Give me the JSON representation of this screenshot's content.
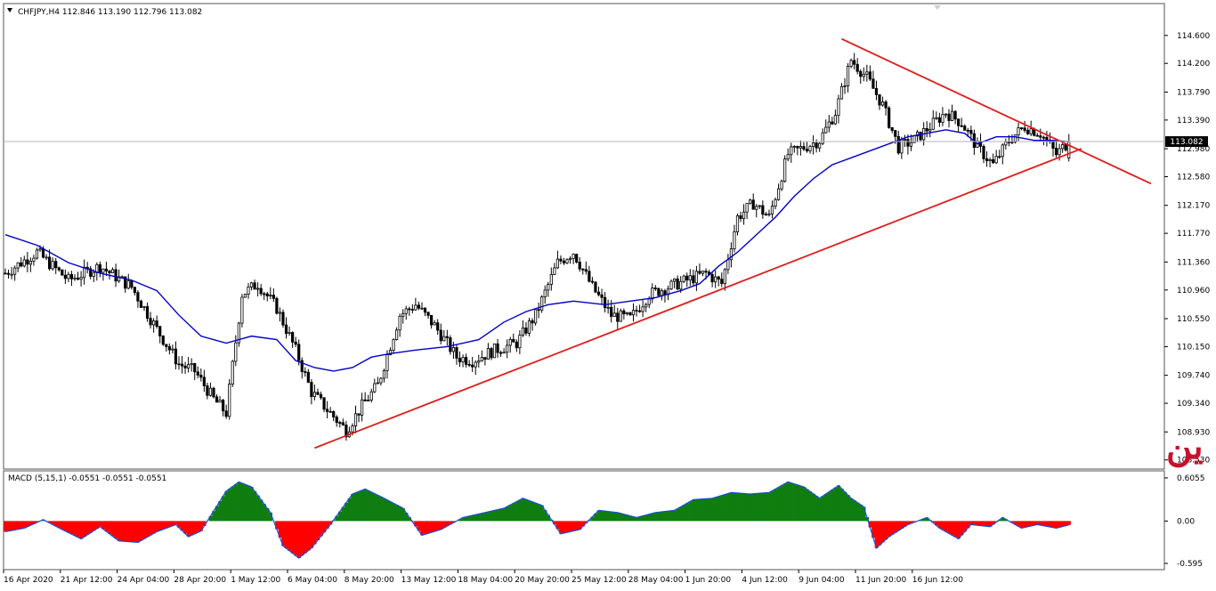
{
  "chart_window": {
    "header": "CHFJPY,H4  112.846 113.190 112.796 113.082",
    "overlay_text": "الفرنك ين",
    "current_price_label": "113.082",
    "colors": {
      "background": "#ffffff",
      "candle": "#000000",
      "moving_average": "#0000cc",
      "trendlines": "#e11b1b",
      "histogram_positive": "#0f7d0f",
      "histogram_negative": "#ff0000",
      "macd_line": "#1a4fd6",
      "overlay_text": "#c8102e"
    }
  },
  "chart_data": [
    {
      "type": "candlestick",
      "title": "CHFJPY,H4",
      "ohlc_header": {
        "open": 112.846,
        "high": 113.19,
        "low": 112.796,
        "close": 113.082
      },
      "ylim": [
        108.45,
        114.75
      ],
      "y_ticks": [
        "114.600",
        "114.200",
        "113.790",
        "113.390",
        "112.980",
        "112.580",
        "112.170",
        "111.770",
        "111.360",
        "110.960",
        "110.550",
        "110.150",
        "109.740",
        "109.340",
        "108.930",
        "108.530"
      ],
      "x_ticks": [
        "16 Apr 2020",
        "21 Apr 12:00",
        "24 Apr 04:00",
        "28 Apr 20:00",
        "1 May 12:00",
        "6 May 04:00",
        "8 May 20:00",
        "13 May 12:00",
        "18 May 04:00",
        "20 May 20:00",
        "25 May 12:00",
        "28 May 04:00",
        "1 Jun 20:00",
        "4 Jun 12:00",
        "9 Jun 04:00",
        "11 Jun 20:00",
        "16 Jun 12:00"
      ],
      "close_path": [
        [
          0,
          111.2
        ],
        [
          10,
          111.5
        ],
        [
          20,
          111.1
        ],
        [
          30,
          111.3
        ],
        [
          40,
          111.0
        ],
        [
          48,
          110.4
        ],
        [
          55,
          109.9
        ],
        [
          60,
          109.8
        ],
        [
          66,
          109.4
        ],
        [
          70,
          109.2
        ],
        [
          75,
          110.9
        ],
        [
          80,
          111.05
        ],
        [
          86,
          110.7
        ],
        [
          92,
          110.1
        ],
        [
          97,
          109.5
        ],
        [
          103,
          109.2
        ],
        [
          108,
          108.95
        ],
        [
          113,
          109.3
        ],
        [
          118,
          109.6
        ],
        [
          125,
          110.6
        ],
        [
          130,
          110.75
        ],
        [
          136,
          110.45
        ],
        [
          143,
          110.0
        ],
        [
          148,
          109.95
        ],
        [
          155,
          110.1
        ],
        [
          162,
          110.2
        ],
        [
          168,
          110.6
        ],
        [
          175,
          111.35
        ],
        [
          180,
          111.5
        ],
        [
          186,
          111.0
        ],
        [
          192,
          110.6
        ],
        [
          198,
          110.55
        ],
        [
          204,
          110.9
        ],
        [
          210,
          111.0
        ],
        [
          216,
          111.1
        ],
        [
          222,
          111.2
        ],
        [
          227,
          111.05
        ],
        [
          232,
          112.0
        ],
        [
          237,
          112.2
        ],
        [
          242,
          112.0
        ],
        [
          248,
          112.9
        ],
        [
          253,
          113.0
        ],
        [
          258,
          113.1
        ],
        [
          263,
          113.5
        ],
        [
          268,
          114.25
        ],
        [
          273,
          114.0
        ],
        [
          278,
          113.6
        ],
        [
          283,
          113.0
        ],
        [
          288,
          113.1
        ],
        [
          293,
          113.3
        ],
        [
          298,
          113.5
        ],
        [
          303,
          113.35
        ],
        [
          308,
          113.0
        ],
        [
          313,
          112.75
        ],
        [
          318,
          113.1
        ],
        [
          323,
          113.3
        ],
        [
          328,
          113.2
        ],
        [
          333,
          112.9
        ],
        [
          337,
          113.082
        ]
      ],
      "moving_average": {
        "name": "",
        "values": [
          [
            0,
            111.75
          ],
          [
            10,
            111.6
          ],
          [
            20,
            111.35
          ],
          [
            30,
            111.2
          ],
          [
            40,
            111.1
          ],
          [
            48,
            110.95
          ],
          [
            55,
            110.6
          ],
          [
            62,
            110.3
          ],
          [
            70,
            110.2
          ],
          [
            78,
            110.3
          ],
          [
            86,
            110.25
          ],
          [
            92,
            109.95
          ],
          [
            98,
            109.85
          ],
          [
            104,
            109.8
          ],
          [
            110,
            109.85
          ],
          [
            116,
            110.0
          ],
          [
            122,
            110.05
          ],
          [
            130,
            110.1
          ],
          [
            140,
            110.15
          ],
          [
            150,
            110.25
          ],
          [
            158,
            110.5
          ],
          [
            165,
            110.65
          ],
          [
            172,
            110.75
          ],
          [
            180,
            110.8
          ],
          [
            190,
            110.75
          ],
          [
            198,
            110.8
          ],
          [
            206,
            110.85
          ],
          [
            214,
            110.95
          ],
          [
            220,
            111.05
          ],
          [
            226,
            111.3
          ],
          [
            232,
            111.5
          ],
          [
            238,
            111.75
          ],
          [
            244,
            112.0
          ],
          [
            250,
            112.3
          ],
          [
            256,
            112.55
          ],
          [
            262,
            112.75
          ],
          [
            268,
            112.85
          ],
          [
            274,
            112.95
          ],
          [
            280,
            113.05
          ],
          [
            286,
            113.15
          ],
          [
            292,
            113.2
          ],
          [
            298,
            113.25
          ],
          [
            304,
            113.2
          ],
          [
            308,
            113.05
          ],
          [
            314,
            113.15
          ],
          [
            320,
            113.15
          ],
          [
            326,
            113.1
          ],
          [
            332,
            113.1
          ],
          [
            337,
            113.08
          ]
        ]
      },
      "trendlines": [
        {
          "name": "",
          "from": [
            98,
            108.7
          ],
          "to": [
            341,
            112.98
          ]
        },
        {
          "name": "",
          "from": [
            265,
            114.55
          ],
          "to": [
            363,
            112.48
          ]
        }
      ]
    },
    {
      "type": "area",
      "title": "MACD (5,15,1) -0.0551 -0.0551 -0.0551",
      "ylim": [
        -0.62,
        0.63
      ],
      "y_ticks": [
        "0.6055",
        "0.00",
        "-0.595"
      ],
      "x_ticks": [],
      "values": [
        [
          0,
          -0.15
        ],
        [
          6,
          -0.1
        ],
        [
          12,
          0.02
        ],
        [
          18,
          -0.12
        ],
        [
          24,
          -0.25
        ],
        [
          30,
          -0.08
        ],
        [
          36,
          -0.28
        ],
        [
          42,
          -0.3
        ],
        [
          48,
          -0.15
        ],
        [
          54,
          -0.05
        ],
        [
          58,
          -0.22
        ],
        [
          62,
          -0.14
        ],
        [
          70,
          0.42
        ],
        [
          74,
          0.55
        ],
        [
          78,
          0.48
        ],
        [
          84,
          0.12
        ],
        [
          88,
          -0.35
        ],
        [
          93,
          -0.52
        ],
        [
          97,
          -0.38
        ],
        [
          103,
          -0.05
        ],
        [
          110,
          0.38
        ],
        [
          114,
          0.45
        ],
        [
          120,
          0.32
        ],
        [
          126,
          0.18
        ],
        [
          132,
          -0.2
        ],
        [
          138,
          -0.12
        ],
        [
          145,
          0.05
        ],
        [
          150,
          0.1
        ],
        [
          158,
          0.18
        ],
        [
          164,
          0.32
        ],
        [
          170,
          0.22
        ],
        [
          176,
          -0.18
        ],
        [
          182,
          -0.12
        ],
        [
          188,
          0.15
        ],
        [
          194,
          0.12
        ],
        [
          200,
          0.05
        ],
        [
          206,
          0.12
        ],
        [
          212,
          0.15
        ],
        [
          218,
          0.3
        ],
        [
          224,
          0.32
        ],
        [
          230,
          0.4
        ],
        [
          236,
          0.38
        ],
        [
          242,
          0.4
        ],
        [
          248,
          0.55
        ],
        [
          253,
          0.48
        ],
        [
          258,
          0.32
        ],
        [
          264,
          0.5
        ],
        [
          268,
          0.32
        ],
        [
          272,
          0.2
        ],
        [
          276,
          -0.38
        ],
        [
          280,
          -0.22
        ],
        [
          286,
          -0.05
        ],
        [
          292,
          0.05
        ],
        [
          296,
          -0.1
        ],
        [
          302,
          -0.25
        ],
        [
          306,
          -0.05
        ],
        [
          312,
          -0.08
        ],
        [
          316,
          0.05
        ],
        [
          322,
          -0.1
        ],
        [
          327,
          -0.05
        ],
        [
          333,
          -0.1
        ],
        [
          337,
          -0.0551
        ]
      ]
    }
  ]
}
